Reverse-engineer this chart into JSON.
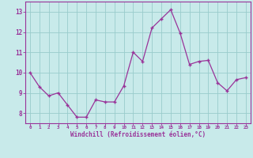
{
  "x": [
    0,
    1,
    2,
    3,
    4,
    5,
    6,
    7,
    8,
    9,
    10,
    11,
    12,
    13,
    14,
    15,
    16,
    17,
    18,
    19,
    20,
    21,
    22,
    23
  ],
  "y": [
    10.0,
    9.3,
    8.85,
    9.0,
    8.4,
    7.8,
    7.8,
    8.65,
    8.55,
    8.55,
    9.35,
    11.0,
    10.55,
    12.2,
    12.65,
    13.1,
    11.95,
    10.4,
    10.55,
    10.6,
    9.5,
    9.1,
    9.65,
    9.75
  ],
  "line_color": "#993399",
  "marker": "+",
  "marker_color": "#993399",
  "bg_color": "#c8eaea",
  "grid_color": "#99cccc",
  "xlabel": "Windchill (Refroidissement éolien,°C)",
  "xlabel_color": "#993399",
  "tick_color": "#993399",
  "ylim": [
    7.5,
    13.5
  ],
  "xlim": [
    -0.5,
    23.5
  ],
  "yticks": [
    8,
    9,
    10,
    11,
    12,
    13
  ],
  "xticks": [
    0,
    1,
    2,
    3,
    4,
    5,
    6,
    7,
    8,
    9,
    10,
    11,
    12,
    13,
    14,
    15,
    16,
    17,
    18,
    19,
    20,
    21,
    22,
    23
  ]
}
